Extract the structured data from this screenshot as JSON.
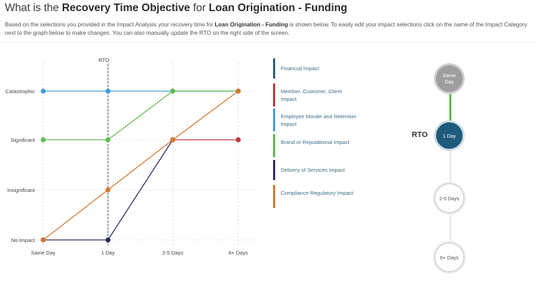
{
  "header": {
    "title_prefix": "What is the ",
    "title_bold1": "Recovery Time Objective",
    "title_mid": " for ",
    "title_bold2": "Loan Origination - Funding"
  },
  "description": {
    "part1": "Based on the selections you provided in the Impact Analysis your recovery time for ",
    "bold": "Loan Origination - Funding",
    "part2": " is shown below. To easily edit your impact selections click on the name of the Impact Category next to the graph below to make changes. You can also manually update the RTO on the right side of the screen."
  },
  "chart_data": {
    "type": "line",
    "categories": [
      "Same Day",
      "1 Day",
      "2-5 Days",
      "6+ Days"
    ],
    "levels": [
      "No Impact",
      "Insignificant",
      "Significant",
      "Catastrophic"
    ],
    "rto_label": "RTO",
    "rto_index": 1,
    "series": [
      {
        "name": "Financial Impact",
        "color": "#2e5f7e",
        "values": [
          null,
          null,
          null,
          null
        ]
      },
      {
        "name": "Member, Customer, Client Impact",
        "color": "#c0373a",
        "values": [
          null,
          null,
          "Significant",
          "Significant"
        ]
      },
      {
        "name": "Employee Morale and Retention Impact",
        "color": "#3fa0d8",
        "values": [
          "Catastrophic",
          "Catastrophic",
          "Catastrophic",
          "Catastrophic"
        ]
      },
      {
        "name": "Brand or Reputational Impact",
        "color": "#5fbb4e",
        "values": [
          "Significant",
          "Significant",
          "Catastrophic",
          "Catastrophic"
        ]
      },
      {
        "name": "Delivery of Services Impact",
        "color": "#2d2a62",
        "values": [
          "No Impact",
          "No Impact",
          "Significant",
          null
        ]
      },
      {
        "name": "Compliance Regulatory Impact",
        "color": "#d4772e",
        "values": [
          "No Impact",
          "Insignificant",
          "Significant",
          "Catastrophic"
        ]
      }
    ]
  },
  "timeline": {
    "rto_label": "RTO",
    "steps": [
      {
        "label": "Same Day",
        "state": "done"
      },
      {
        "label": "1 Day",
        "state": "active"
      },
      {
        "label": "2-5 Days",
        "state": "empty"
      },
      {
        "label": "6+ Days",
        "state": "empty"
      }
    ]
  },
  "colors": {
    "accent": "#1d5a7c",
    "done": "#9e9e9e",
    "connector": "#5fbb4e"
  }
}
